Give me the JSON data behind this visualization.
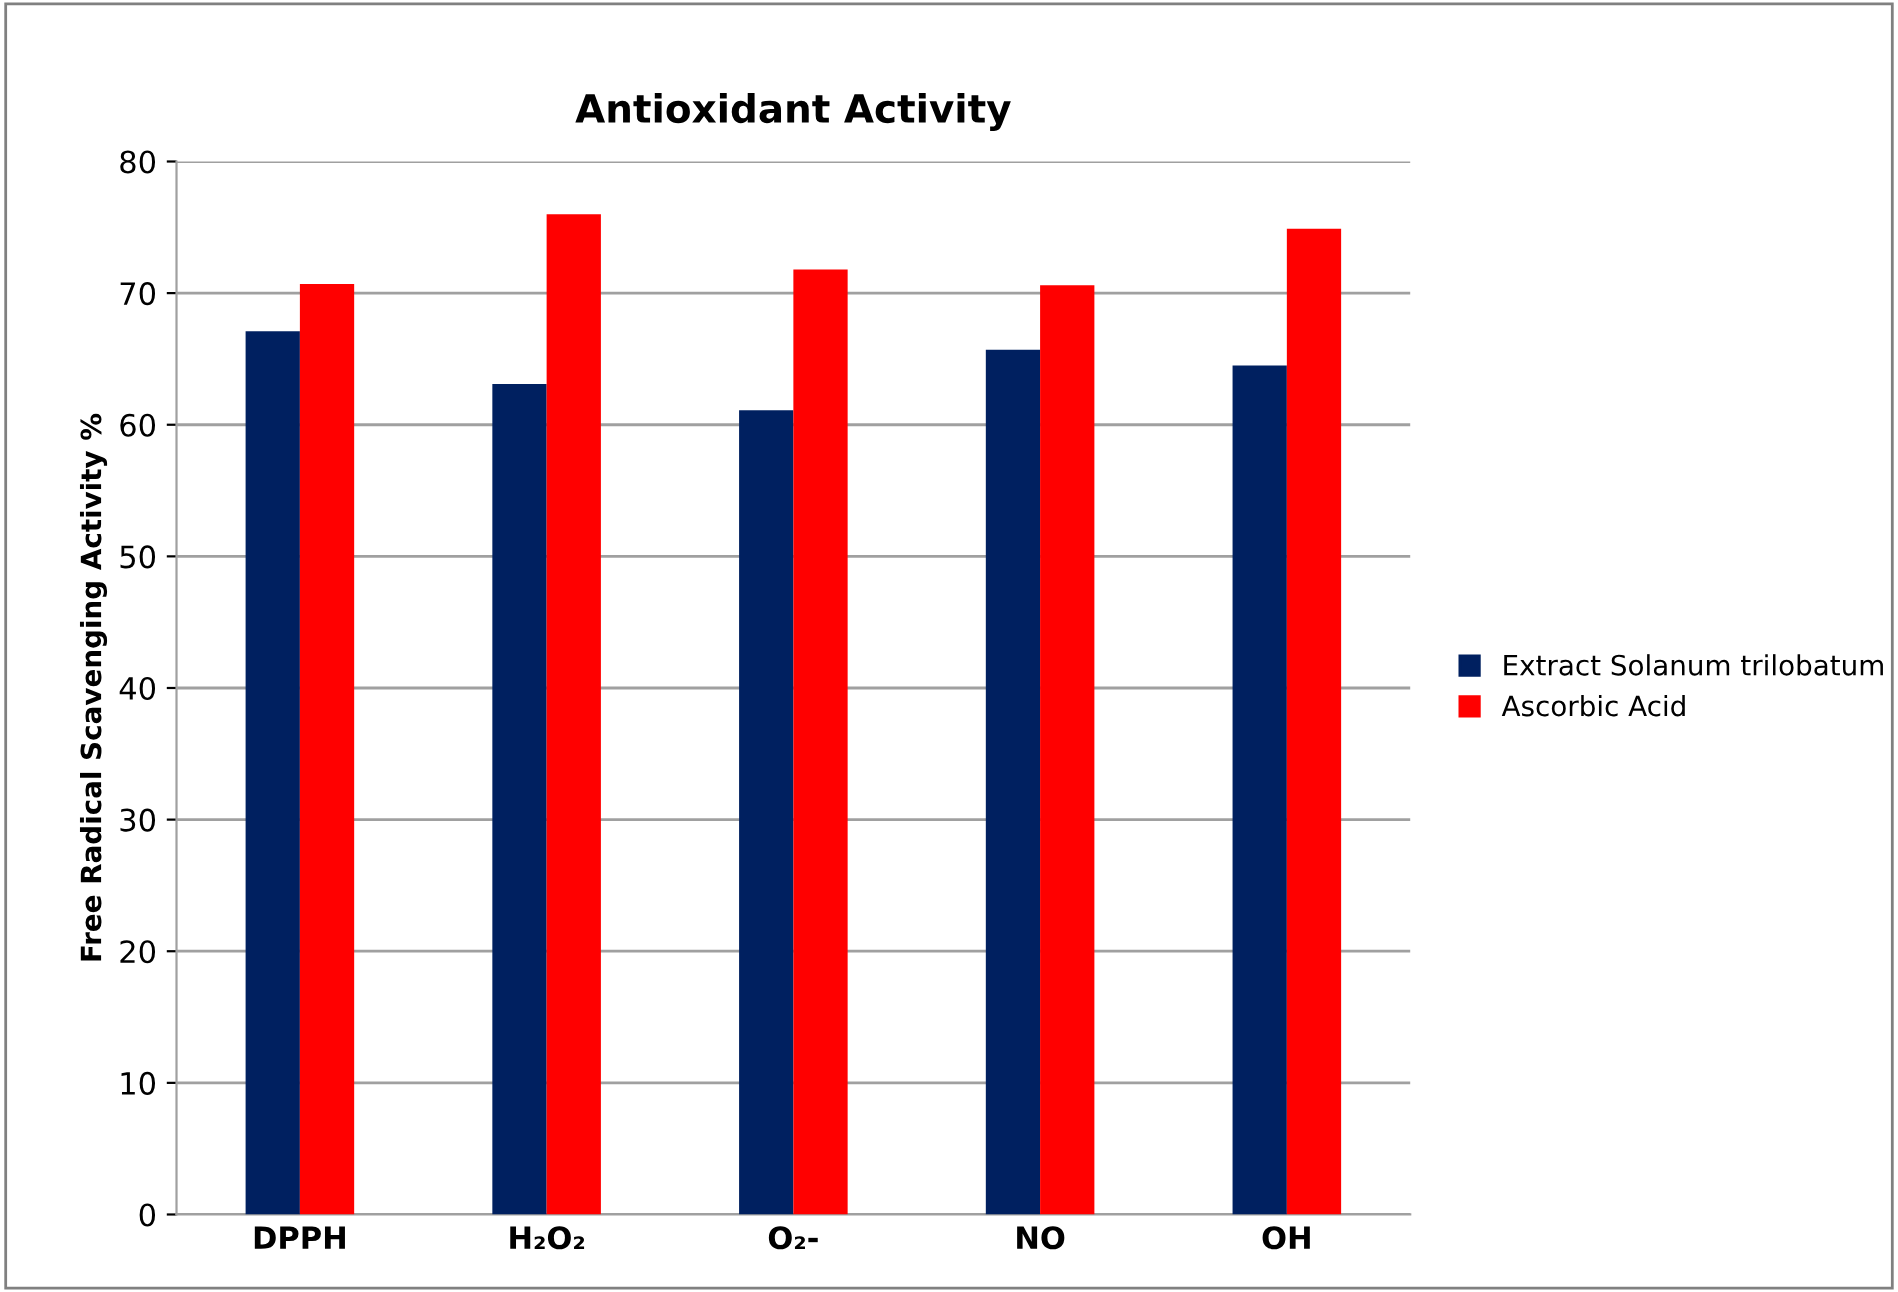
{
  "chart_data": {
    "type": "bar",
    "title": "Antioxidant Activity",
    "ylabel": "Free Radical Scavenging Activity %",
    "categories": [
      "DPPH",
      "H₂O₂",
      "O₂-",
      "NO",
      "OH"
    ],
    "series": [
      {
        "name": "Extract Solanum trilobatum",
        "color": "#002060",
        "values": [
          67.1,
          63.1,
          61.1,
          65.7,
          64.5
        ]
      },
      {
        "name": "Ascorbic Acid",
        "color": "#ff0000",
        "values": [
          70.7,
          76.0,
          71.8,
          70.6,
          74.9
        ]
      }
    ],
    "ylim": [
      0,
      80
    ],
    "yticks": [
      0,
      10,
      20,
      30,
      40,
      50,
      60,
      70,
      80
    ],
    "grid": "y",
    "legend": "right"
  }
}
